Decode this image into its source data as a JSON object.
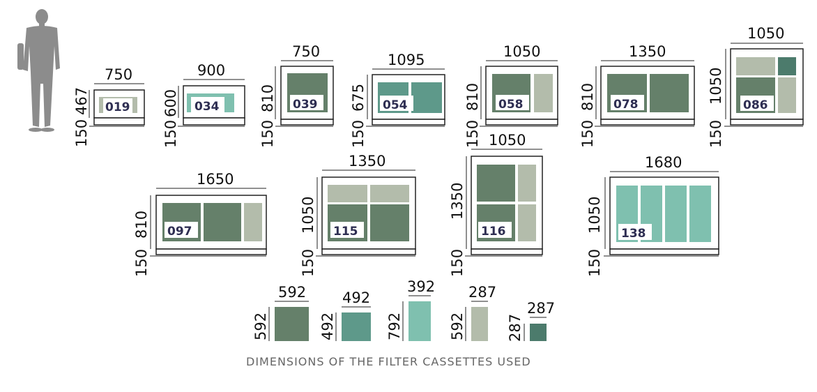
{
  "colors": {
    "dark_green": "#65806a",
    "mid_teal": "#5e998a",
    "light_teal": "#7fc0af",
    "grey_green": "#b3bcab",
    "dark_teal": "#4c7b6c",
    "code_text": "#2e2e52",
    "figure": "#8c8c8c"
  },
  "figure": {
    "icon": "person-silhouette-icon"
  },
  "units": [
    {
      "code": "019",
      "width": "750",
      "height": "467",
      "base": "150"
    },
    {
      "code": "034",
      "width": "900",
      "height": "600",
      "base": "150"
    },
    {
      "code": "039",
      "width": "750",
      "height": "810",
      "base": "150"
    },
    {
      "code": "054",
      "width": "1095",
      "height": "675",
      "base": "150"
    },
    {
      "code": "058",
      "width": "1050",
      "height": "810",
      "base": "150"
    },
    {
      "code": "078",
      "width": "1350",
      "height": "810",
      "base": "150"
    },
    {
      "code": "086",
      "width": "1050",
      "height": "1050",
      "base": "150"
    },
    {
      "code": "097",
      "width": "1650",
      "height": "810",
      "base": "150"
    },
    {
      "code": "115",
      "width": "1350",
      "height": "1050",
      "base": "150"
    },
    {
      "code": "116",
      "width": "1050",
      "height": "1350",
      "base": "150"
    },
    {
      "code": "138",
      "width": "1680",
      "height": "1050",
      "base": "150"
    }
  ],
  "cassettes": [
    {
      "width": "592",
      "height": "592",
      "color": "#65806a"
    },
    {
      "width": "492",
      "height": "492",
      "color": "#5e998a"
    },
    {
      "width": "392",
      "height": "792",
      "color": "#7fc0af"
    },
    {
      "width": "287",
      "height": "592",
      "color": "#b3bcab"
    },
    {
      "width": "287",
      "height": "287",
      "color": "#4c7b6c"
    }
  ],
  "caption": "DIMENSIONS OF THE FILTER CASSETTES USED"
}
